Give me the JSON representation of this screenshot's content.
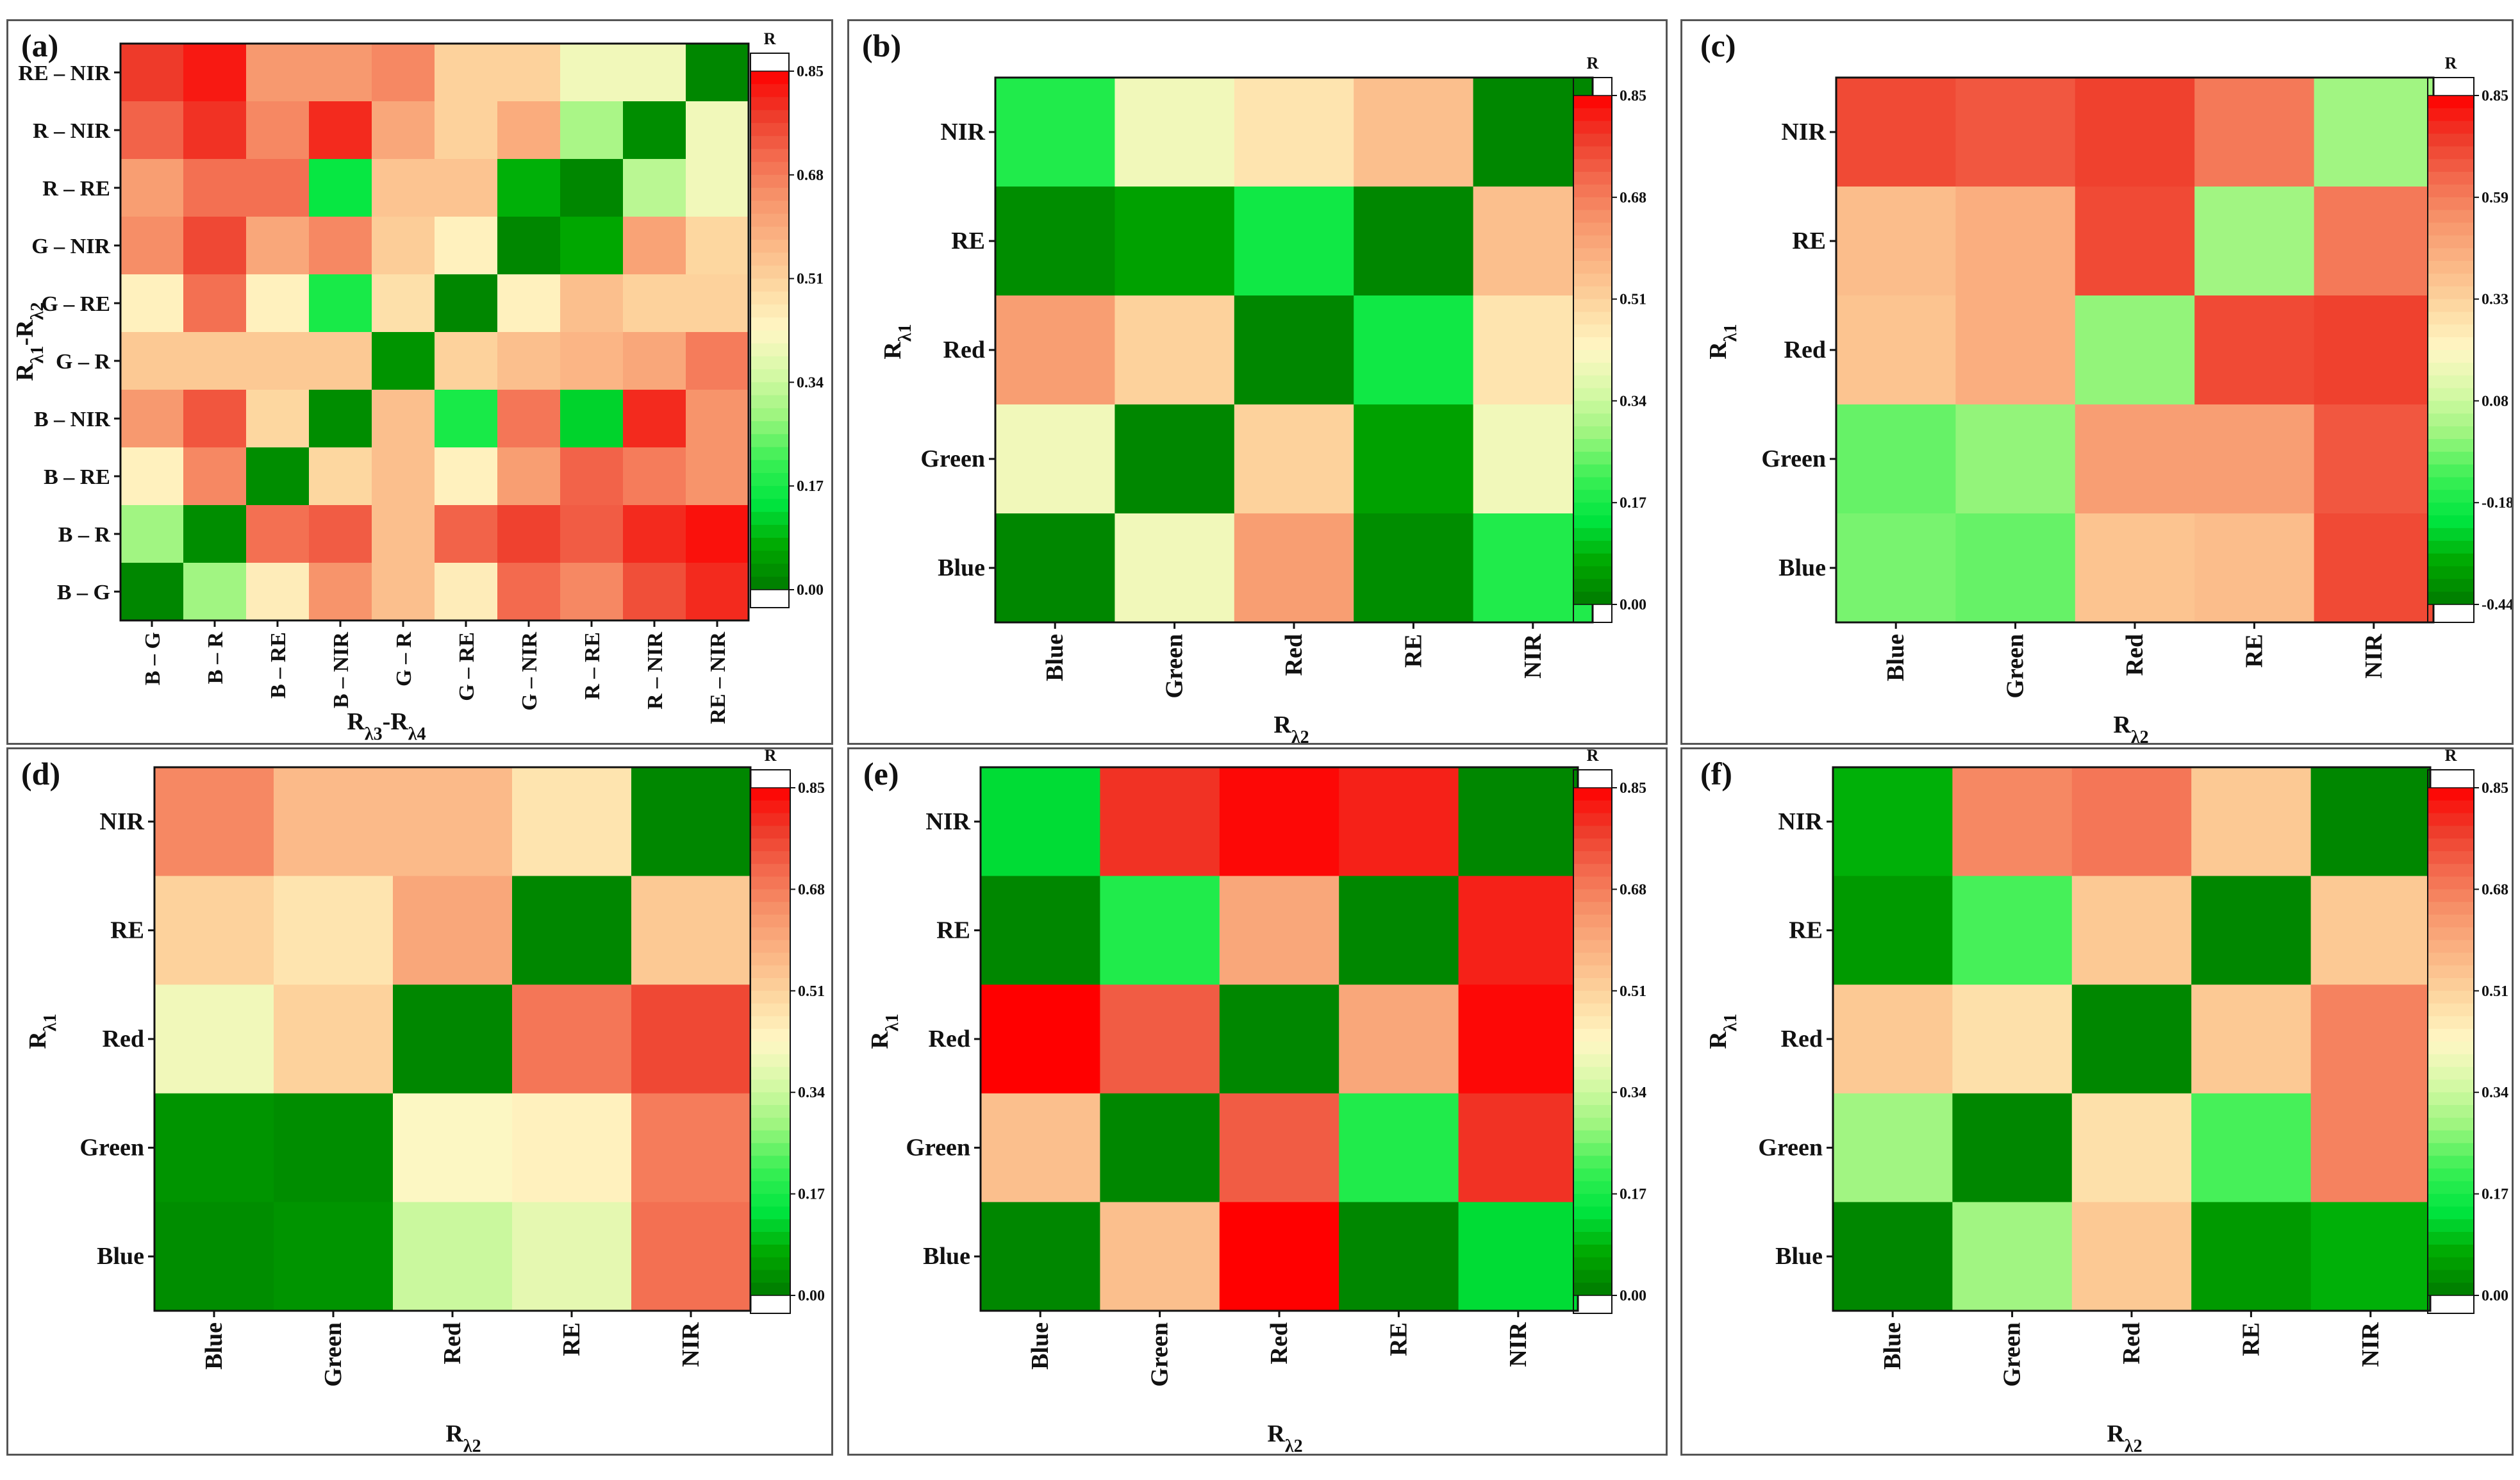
{
  "colors": {
    "scale": [
      "#007a00",
      "#00a800",
      "#00e640",
      "#3cef55",
      "#9cf57e",
      "#d6f9a6",
      "#fff7c5",
      "#fdd9a2",
      "#fbb786",
      "#f7966c",
      "#f36b4f",
      "#ee3b2a",
      "#ff0000"
    ]
  },
  "panels": [
    {
      "id": "a",
      "label": "(a)",
      "x_axis_title": "Rλ3-Rλ4",
      "y_axis_title": "Rλ1-Rλ2",
      "colorbar_title": "R",
      "colorbar_ticks": [
        "0.85",
        "0.68",
        "0.51",
        "0.34",
        "0.17",
        "0.00"
      ],
      "x_ticks": [
        "B – G",
        "B – R",
        "B – RE",
        "B – NIR",
        "G – R",
        "G – RE",
        "G – NIR",
        "R – RE",
        "R – NIR",
        "RE – NIR"
      ],
      "y_ticks": [
        "RE – NIR",
        "R – NIR",
        "R – RE",
        "G – NIR",
        "G – RE",
        "G – R",
        "B – NIR",
        "B – RE",
        "B – R",
        "B – G"
      ]
    },
    {
      "id": "b",
      "label": "(b)",
      "x_axis_title": "Rλ2",
      "y_axis_title": "Rλ1",
      "colorbar_title": "R",
      "colorbar_ticks": [
        "0.85",
        "0.68",
        "0.51",
        "0.34",
        "0.17",
        "0.00"
      ],
      "x_ticks": [
        "Blue",
        "Green",
        "Red",
        "RE",
        "NIR"
      ],
      "y_ticks": [
        "NIR",
        "RE",
        "Red",
        "Green",
        "Blue"
      ]
    },
    {
      "id": "c",
      "label": "(c)",
      "x_axis_title": "Rλ2",
      "y_axis_title": "Rλ1",
      "colorbar_title": "R",
      "colorbar_ticks": [
        "0.85",
        "0.59",
        "0.33",
        "0.08",
        "-0.18",
        "-0.44"
      ],
      "x_ticks": [
        "Blue",
        "Green",
        "Red",
        "RE",
        "NIR"
      ],
      "y_ticks": [
        "NIR",
        "RE",
        "Red",
        "Green",
        "Blue"
      ]
    },
    {
      "id": "d",
      "label": "(d)",
      "x_axis_title": "Rλ2",
      "y_axis_title": "Rλ1",
      "colorbar_title": "R",
      "colorbar_ticks": [
        "0.85",
        "0.68",
        "0.51",
        "0.34",
        "0.17",
        "0.00"
      ],
      "x_ticks": [
        "Blue",
        "Green",
        "Red",
        "RE",
        "NIR"
      ],
      "y_ticks": [
        "NIR",
        "RE",
        "Red",
        "Green",
        "Blue"
      ]
    },
    {
      "id": "e",
      "label": "(e)",
      "x_axis_title": "Rλ2",
      "y_axis_title": "Rλ1",
      "colorbar_title": "R",
      "colorbar_ticks": [
        "0.85",
        "0.68",
        "0.51",
        "0.34",
        "0.17",
        "0.00"
      ],
      "x_ticks": [
        "Blue",
        "Green",
        "Red",
        "RE",
        "NIR"
      ],
      "y_ticks": [
        "NIR",
        "RE",
        "Red",
        "Green",
        "Blue"
      ]
    },
    {
      "id": "f",
      "label": "(f)",
      "x_axis_title": "Rλ2",
      "y_axis_title": "Rλ1",
      "colorbar_title": "R",
      "colorbar_ticks": [
        "0.85",
        "0.68",
        "0.51",
        "0.34",
        "0.17",
        "0.00"
      ],
      "x_ticks": [
        "Blue",
        "Green",
        "Red",
        "RE",
        "NIR"
      ],
      "y_ticks": [
        "NIR",
        "RE",
        "Red",
        "Green",
        "Blue"
      ]
    }
  ],
  "chart_data": [
    {
      "type": "heatmap",
      "panel": "(a)",
      "x_categories": [
        "B – G",
        "B – R",
        "B – RE",
        "B – NIR",
        "G – R",
        "G – RE",
        "G – NIR",
        "R – RE",
        "R – NIR",
        "RE – NIR"
      ],
      "y_categories": [
        "RE – NIR",
        "R – NIR",
        "R – RE",
        "G – NIR",
        "G – RE",
        "G – R",
        "B – NIR",
        "B – RE",
        "B – R",
        "B – G"
      ],
      "zlim": [
        0,
        0.85
      ],
      "z": [
        [
          0.78,
          0.82,
          0.63,
          0.63,
          0.66,
          0.51,
          0.51,
          0.4,
          0.4,
          0.02
        ],
        [
          0.72,
          0.79,
          0.66,
          0.8,
          0.6,
          0.51,
          0.59,
          0.3,
          0.03,
          0.4
        ],
        [
          0.62,
          0.7,
          0.7,
          0.15,
          0.54,
          0.54,
          0.08,
          0.02,
          0.32,
          0.4
        ],
        [
          0.65,
          0.76,
          0.6,
          0.66,
          0.52,
          0.44,
          0.02,
          0.07,
          0.61,
          0.5
        ],
        [
          0.44,
          0.7,
          0.44,
          0.17,
          0.48,
          0.02,
          0.44,
          0.55,
          0.51,
          0.51
        ],
        [
          0.53,
          0.53,
          0.53,
          0.53,
          0.04,
          0.51,
          0.55,
          0.57,
          0.6,
          0.68
        ],
        [
          0.63,
          0.74,
          0.5,
          0.03,
          0.55,
          0.17,
          0.69,
          0.12,
          0.8,
          0.64
        ],
        [
          0.44,
          0.66,
          0.03,
          0.5,
          0.55,
          0.44,
          0.62,
          0.72,
          0.68,
          0.64
        ],
        [
          0.29,
          0.03,
          0.7,
          0.73,
          0.55,
          0.72,
          0.77,
          0.73,
          0.8,
          0.83
        ],
        [
          0.02,
          0.29,
          0.45,
          0.64,
          0.55,
          0.45,
          0.71,
          0.66,
          0.75,
          0.8
        ]
      ],
      "title": "",
      "xlabel": "Rλ3-Rλ4",
      "ylabel": "Rλ1-Rλ2"
    },
    {
      "type": "heatmap",
      "panel": "(b)",
      "x_categories": [
        "Blue",
        "Green",
        "Red",
        "RE",
        "NIR"
      ],
      "y_categories": [
        "NIR",
        "RE",
        "Red",
        "Green",
        "Blue"
      ],
      "zlim": [
        0,
        0.85
      ],
      "z": [
        [
          0.18,
          0.4,
          0.47,
          0.55,
          0.02
        ],
        [
          0.03,
          0.06,
          0.16,
          0.02,
          0.55
        ],
        [
          0.62,
          0.51,
          0.02,
          0.16,
          0.47
        ],
        [
          0.4,
          0.02,
          0.51,
          0.06,
          0.4
        ],
        [
          0.02,
          0.4,
          0.62,
          0.03,
          0.18
        ]
      ],
      "title": "",
      "xlabel": "Rλ2",
      "ylabel": "Rλ1"
    },
    {
      "type": "heatmap",
      "panel": "(c)",
      "x_categories": [
        "Blue",
        "Green",
        "Red",
        "RE",
        "NIR"
      ],
      "y_categories": [
        "NIR",
        "RE",
        "Red",
        "Green",
        "Blue"
      ],
      "zlim": [
        -0.44,
        0.85
      ],
      "z": [
        [
          0.71,
          0.68,
          0.73,
          0.6,
          0.0
        ],
        [
          0.4,
          0.45,
          0.71,
          0.0,
          0.6
        ],
        [
          0.38,
          0.45,
          -0.02,
          0.71,
          0.73
        ],
        [
          -0.07,
          -0.02,
          0.5,
          0.5,
          0.68
        ],
        [
          -0.05,
          -0.07,
          0.38,
          0.4,
          0.71
        ]
      ],
      "title": "",
      "xlabel": "Rλ2",
      "ylabel": "Rλ1"
    },
    {
      "type": "heatmap",
      "panel": "(d)",
      "x_categories": [
        "Blue",
        "Green",
        "Red",
        "RE",
        "NIR"
      ],
      "y_categories": [
        "NIR",
        "RE",
        "Red",
        "Green",
        "Blue"
      ],
      "zlim": [
        0,
        0.85
      ],
      "z": [
        [
          0.66,
          0.56,
          0.56,
          0.47,
          0.02
        ],
        [
          0.51,
          0.47,
          0.6,
          0.02,
          0.53
        ],
        [
          0.4,
          0.51,
          0.02,
          0.69,
          0.76
        ],
        [
          0.04,
          0.03,
          0.42,
          0.44,
          0.68
        ],
        [
          0.03,
          0.04,
          0.34,
          0.38,
          0.7
        ]
      ],
      "title": "",
      "xlabel": "Rλ2",
      "ylabel": "Rλ1"
    },
    {
      "type": "heatmap",
      "panel": "(e)",
      "x_categories": [
        "Blue",
        "Green",
        "Red",
        "RE",
        "NIR"
      ],
      "y_categories": [
        "NIR",
        "RE",
        "Red",
        "Green",
        "Blue"
      ],
      "zlim": [
        0,
        0.85
      ],
      "z": [
        [
          0.13,
          0.79,
          0.84,
          0.81,
          0.02
        ],
        [
          0.02,
          0.18,
          0.6,
          0.02,
          0.81
        ],
        [
          0.85,
          0.73,
          0.02,
          0.6,
          0.84
        ],
        [
          0.55,
          0.02,
          0.73,
          0.18,
          0.79
        ],
        [
          0.02,
          0.55,
          0.85,
          0.02,
          0.13
        ]
      ],
      "title": "",
      "xlabel": "Rλ2",
      "ylabel": "Rλ1"
    },
    {
      "type": "heatmap",
      "panel": "(f)",
      "x_categories": [
        "Blue",
        "Green",
        "Red",
        "RE",
        "NIR"
      ],
      "y_categories": [
        "NIR",
        "RE",
        "Red",
        "Green",
        "Blue"
      ],
      "zlim": [
        0,
        0.85
      ],
      "z": [
        [
          0.08,
          0.66,
          0.69,
          0.53,
          0.02
        ],
        [
          0.05,
          0.22,
          0.53,
          0.02,
          0.53
        ],
        [
          0.53,
          0.48,
          0.02,
          0.53,
          0.67
        ],
        [
          0.29,
          0.02,
          0.48,
          0.22,
          0.67
        ],
        [
          0.02,
          0.29,
          0.53,
          0.05,
          0.08
        ]
      ],
      "title": "",
      "xlabel": "Rλ2",
      "ylabel": "Rλ1"
    }
  ]
}
